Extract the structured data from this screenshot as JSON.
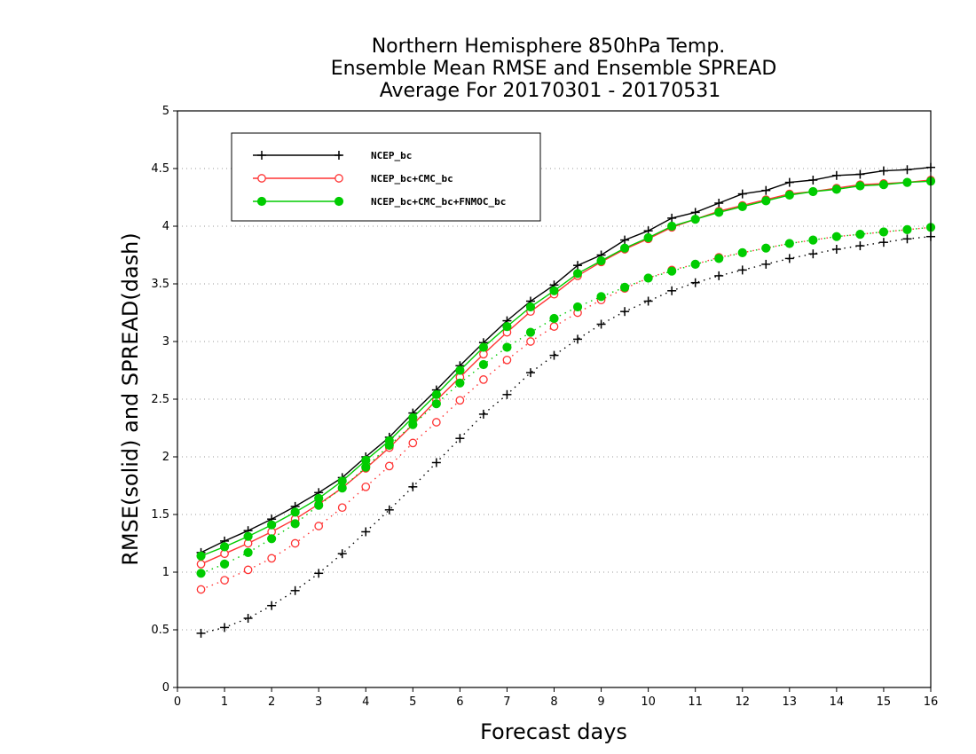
{
  "chart_data": {
    "type": "line",
    "title": [
      "Northern Hemisphere 850hPa Temp.",
      "Ensemble Mean RMSE and Ensemble SPREAD",
      "Average For 20170301 - 20170531"
    ],
    "xlabel": "Forecast days",
    "ylabel": "RMSE(solid) and SPREAD(dash)",
    "xlim": [
      0,
      16
    ],
    "ylim": [
      0,
      5
    ],
    "xticks": [
      "0",
      "1",
      "2",
      "3",
      "4",
      "5",
      "6",
      "7",
      "8",
      "9",
      "10",
      "11",
      "12",
      "13",
      "14",
      "15",
      "16"
    ],
    "yticks": [
      "0",
      "0.5",
      "1",
      "1.5",
      "2",
      "2.5",
      "3",
      "3.5",
      "4",
      "4.5",
      "5"
    ],
    "grid": "horizontal dotted",
    "legend_position": "top-left",
    "x": [
      0.5,
      1,
      1.5,
      2,
      2.5,
      3,
      3.5,
      4,
      4.5,
      5,
      5.5,
      6,
      6.5,
      7,
      7.5,
      8,
      8.5,
      9,
      9.5,
      10,
      10.5,
      11,
      11.5,
      12,
      12.5,
      13,
      13.5,
      14,
      14.5,
      15,
      15.5,
      16
    ],
    "series": [
      {
        "name": "NCEP_bc",
        "color": "#000000",
        "marker": "plus",
        "rmse": [
          1.17,
          1.27,
          1.36,
          1.46,
          1.57,
          1.69,
          1.82,
          2.0,
          2.17,
          2.38,
          2.58,
          2.79,
          2.99,
          3.18,
          3.35,
          3.49,
          3.66,
          3.75,
          3.88,
          3.96,
          4.07,
          4.12,
          4.2,
          4.28,
          4.31,
          4.38,
          4.4,
          4.44,
          4.45,
          4.48,
          4.49,
          4.51
        ],
        "spread": [
          0.47,
          0.52,
          0.6,
          0.71,
          0.84,
          0.99,
          1.16,
          1.35,
          1.54,
          1.74,
          1.95,
          2.16,
          2.37,
          2.54,
          2.73,
          2.88,
          3.02,
          3.15,
          3.26,
          3.35,
          3.44,
          3.51,
          3.57,
          3.62,
          3.67,
          3.72,
          3.76,
          3.8,
          3.83,
          3.86,
          3.89,
          3.91
        ]
      },
      {
        "name": "NCEP_bc+CMC_bc",
        "color": "#ff3333",
        "marker": "open-circle",
        "rmse": [
          1.07,
          1.16,
          1.25,
          1.35,
          1.46,
          1.59,
          1.73,
          1.9,
          2.08,
          2.28,
          2.49,
          2.69,
          2.89,
          3.08,
          3.26,
          3.41,
          3.57,
          3.69,
          3.8,
          3.89,
          3.99,
          4.06,
          4.13,
          4.18,
          4.23,
          4.28,
          4.3,
          4.33,
          4.36,
          4.37,
          4.38,
          4.4
        ],
        "spread": [
          0.85,
          0.93,
          1.02,
          1.12,
          1.25,
          1.4,
          1.56,
          1.74,
          1.92,
          2.12,
          2.3,
          2.49,
          2.67,
          2.84,
          3.0,
          3.13,
          3.25,
          3.36,
          3.46,
          3.55,
          3.62,
          3.67,
          3.73,
          3.77,
          3.81,
          3.85,
          3.88,
          3.91,
          3.93,
          3.95,
          3.97,
          3.99
        ]
      },
      {
        "name": "NCEP_bc+CMC_bc+FNMOC_bc",
        "color": "#00cc00",
        "marker": "filled-circle",
        "rmse": [
          1.14,
          1.22,
          1.31,
          1.41,
          1.52,
          1.64,
          1.79,
          1.97,
          2.14,
          2.34,
          2.54,
          2.75,
          2.95,
          3.13,
          3.3,
          3.44,
          3.59,
          3.7,
          3.81,
          3.9,
          4.0,
          4.06,
          4.12,
          4.17,
          4.22,
          4.27,
          4.3,
          4.32,
          4.35,
          4.36,
          4.38,
          4.39
        ],
        "spread": [
          0.99,
          1.07,
          1.17,
          1.29,
          1.42,
          1.58,
          1.73,
          1.91,
          2.1,
          2.28,
          2.46,
          2.64,
          2.8,
          2.95,
          3.08,
          3.2,
          3.3,
          3.39,
          3.47,
          3.55,
          3.61,
          3.67,
          3.72,
          3.77,
          3.81,
          3.85,
          3.88,
          3.91,
          3.93,
          3.95,
          3.97,
          3.99
        ]
      }
    ]
  }
}
